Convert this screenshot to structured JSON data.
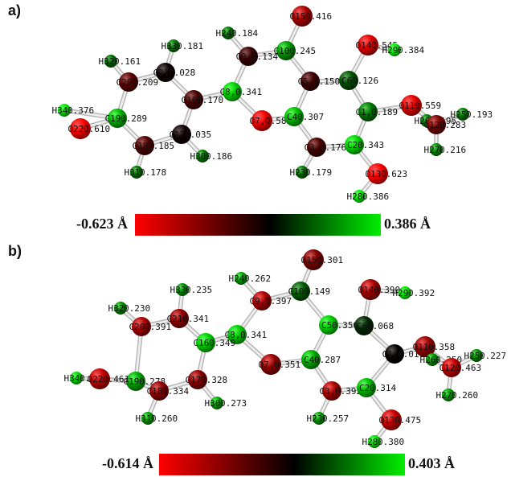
{
  "panels": [
    {
      "id": "a",
      "label": "a)",
      "scale": {
        "min_label": "-0.623 Å",
        "max_label": "0.386 Å",
        "min": -0.623,
        "max": 0.386
      },
      "atoms": [
        {
          "name": "O15",
          "label": "O15",
          "charge": "0.416",
          "value": -0.416,
          "r": 13
        },
        {
          "name": "H24",
          "label": "H24",
          "charge": "0.184",
          "value": 0.184,
          "r": 8
        },
        {
          "name": "C10",
          "label": "C10",
          "charge": "0.245",
          "value": 0.245,
          "r": 12
        },
        {
          "name": "C9",
          "label": "C9,",
          "charge": "0.134",
          "value": -0.134,
          "r": 12
        },
        {
          "name": "O14",
          "label": "O14",
          "charge": "0.545",
          "value": -0.545,
          "r": 13
        },
        {
          "name": "H29",
          "label": "H29",
          "charge": "0.384",
          "value": 0.384,
          "r": 8
        },
        {
          "name": "H33",
          "label": "H33",
          "charge": "0.181",
          "value": 0.181,
          "r": 8
        },
        {
          "name": "C21",
          "label": "C21",
          "charge": "0.028",
          "value": -0.028,
          "r": 12
        },
        {
          "name": "H32",
          "label": "H32",
          "charge": "0.161",
          "value": 0.161,
          "r": 8
        },
        {
          "name": "C20",
          "label": "C20",
          "charge": "0.209",
          "value": -0.209,
          "r": 12
        },
        {
          "name": "C8",
          "label": "C8,",
          "charge": "0.341",
          "value": 0.341,
          "r": 12
        },
        {
          "name": "C5",
          "label": "C5,",
          "charge": "0.150",
          "value": -0.15,
          "r": 12
        },
        {
          "name": "C6",
          "label": "C6",
          "charge": "0.126",
          "value": 0.126,
          "r": 12
        },
        {
          "name": "C16",
          "label": "C16",
          "charge": "0.170",
          "value": -0.17,
          "r": 12
        },
        {
          "name": "C1",
          "label": "C1,",
          "charge": "0.189",
          "value": 0.189,
          "r": 12
        },
        {
          "name": "O11",
          "label": "O11",
          "charge": "0.559",
          "value": -0.559,
          "r": 13
        },
        {
          "name": "H25",
          "label": "H25",
          "charge": "0.193",
          "value": 0.193,
          "r": 8
        },
        {
          "name": "H26",
          "label": "H26",
          "charge": "0.195",
          "value": 0.195,
          "r": 8
        },
        {
          "name": "C12",
          "label": "C12",
          "charge": "0.283",
          "value": -0.283,
          "r": 12
        },
        {
          "name": "H34",
          "label": "H34",
          "charge": "0.376",
          "value": 0.376,
          "r": 8
        },
        {
          "name": "C19",
          "label": "C19",
          "charge": "0.289",
          "value": 0.289,
          "r": 12
        },
        {
          "name": "O7",
          "label": "O7,",
          "charge": "0.585",
          "value": -0.585,
          "r": 13
        },
        {
          "name": "C4",
          "label": "C4",
          "charge": "0.307",
          "value": 0.307,
          "r": 12
        },
        {
          "name": "O22",
          "label": "O22",
          "charge": "0.610",
          "value": -0.61,
          "r": 13
        },
        {
          "name": "C17",
          "label": "C17",
          "charge": "0.035",
          "value": -0.035,
          "r": 12
        },
        {
          "name": "C18",
          "label": "C18",
          "charge": "0.185",
          "value": -0.185,
          "r": 12
        },
        {
          "name": "C3",
          "label": "C3,",
          "charge": "0.176",
          "value": -0.176,
          "r": 12
        },
        {
          "name": "C2",
          "label": "C2",
          "charge": "0.343",
          "value": 0.343,
          "r": 12
        },
        {
          "name": "H30",
          "label": "H30",
          "charge": "0.186",
          "value": 0.186,
          "r": 8
        },
        {
          "name": "H27",
          "label": "H27",
          "charge": "0.216",
          "value": 0.216,
          "r": 8
        },
        {
          "name": "H31",
          "label": "H31",
          "charge": "0.178",
          "value": 0.178,
          "r": 8
        },
        {
          "name": "H23",
          "label": "H23",
          "charge": "0.179",
          "value": 0.179,
          "r": 8
        },
        {
          "name": "O13",
          "label": "O13",
          "charge": "0.623",
          "value": -0.623,
          "r": 13
        },
        {
          "name": "H28",
          "label": "H28",
          "charge": "0.386",
          "value": 0.386,
          "r": 8
        }
      ]
    },
    {
      "id": "b",
      "label": "b)",
      "scale": {
        "min_label": "-0.614 Å",
        "max_label": "0.403 Å",
        "min": -0.614,
        "max": 0.403
      },
      "atoms": [
        {
          "name": "O15",
          "label": "O15",
          "charge": "0.301",
          "value": -0.301,
          "r": 13
        },
        {
          "name": "H24",
          "label": "H24",
          "charge": "0.262",
          "value": 0.262,
          "r": 8
        },
        {
          "name": "C10",
          "label": "C10",
          "charge": "0.149",
          "value": 0.149,
          "r": 12
        },
        {
          "name": "C9",
          "label": "C9,",
          "charge": "0.397",
          "value": -0.397,
          "r": 12
        },
        {
          "name": "O14",
          "label": "O14",
          "charge": "0.390",
          "value": -0.39,
          "r": 13
        },
        {
          "name": "H29",
          "label": "H29",
          "charge": "0.392",
          "value": 0.392,
          "r": 8
        },
        {
          "name": "H33",
          "label": "H33",
          "charge": "0.235",
          "value": 0.235,
          "r": 8
        },
        {
          "name": "C21",
          "label": "C21",
          "charge": "0.341",
          "value": -0.341,
          "r": 12
        },
        {
          "name": "H32",
          "label": "H32",
          "charge": "0.230",
          "value": 0.23,
          "r": 8
        },
        {
          "name": "C20",
          "label": "C20",
          "charge": "0.391",
          "value": -0.391,
          "r": 12
        },
        {
          "name": "C8",
          "label": "C8,",
          "charge": "0.341",
          "value": 0.341,
          "r": 12
        },
        {
          "name": "C5",
          "label": "C5",
          "charge": "0.350",
          "value": 0.35,
          "r": 12
        },
        {
          "name": "C6",
          "label": "C6",
          "charge": "0.068",
          "value": 0.068,
          "r": 12
        },
        {
          "name": "C16",
          "label": "C16",
          "charge": "0.349",
          "value": 0.349,
          "r": 12
        },
        {
          "name": "C1",
          "label": "C1,",
          "charge": "0.011",
          "value": -0.011,
          "r": 12
        },
        {
          "name": "O11",
          "label": "O11",
          "charge": "0.358",
          "value": -0.358,
          "r": 13
        },
        {
          "name": "H25",
          "label": "H25",
          "charge": "0.227",
          "value": 0.227,
          "r": 8
        },
        {
          "name": "H26",
          "label": "H26",
          "charge": "0.250",
          "value": 0.25,
          "r": 8
        },
        {
          "name": "C12",
          "label": "C12",
          "charge": "0.463",
          "value": -0.463,
          "r": 12
        },
        {
          "name": "H34",
          "label": "H34",
          "charge": "0.368",
          "value": 0.368,
          "r": 8
        },
        {
          "name": "C19",
          "label": "C19",
          "charge": "0.278",
          "value": 0.278,
          "r": 12
        },
        {
          "name": "O7",
          "label": "O7,",
          "charge": "0.351",
          "value": -0.351,
          "r": 13
        },
        {
          "name": "C4",
          "label": "C4",
          "charge": "0.287",
          "value": 0.287,
          "r": 12
        },
        {
          "name": "O22",
          "label": "O22",
          "charge": "0.461",
          "value": -0.461,
          "r": 13
        },
        {
          "name": "C17",
          "label": "C17",
          "charge": "0.328",
          "value": -0.328,
          "r": 12
        },
        {
          "name": "C18",
          "label": "C18",
          "charge": "0.334",
          "value": -0.334,
          "r": 12
        },
        {
          "name": "C3",
          "label": "C3,",
          "charge": "0.392",
          "value": -0.392,
          "r": 12
        },
        {
          "name": "C2",
          "label": "C2",
          "charge": "0.314",
          "value": 0.314,
          "r": 12
        },
        {
          "name": "H30",
          "label": "H30",
          "charge": "0.273",
          "value": 0.273,
          "r": 8
        },
        {
          "name": "H27",
          "label": "H27",
          "charge": "0.260",
          "value": 0.26,
          "r": 8
        },
        {
          "name": "H31",
          "label": "H31",
          "charge": "0.260",
          "value": 0.26,
          "r": 8
        },
        {
          "name": "H23",
          "label": "H23",
          "charge": "0.257",
          "value": 0.257,
          "r": 8
        },
        {
          "name": "O13",
          "label": "O13",
          "charge": "0.475",
          "value": -0.475,
          "r": 13
        },
        {
          "name": "H28",
          "label": "H28",
          "charge": "0.380",
          "value": 0.38,
          "r": 8
        }
      ]
    }
  ],
  "bonds": [
    [
      "O15",
      "C10"
    ],
    [
      "C10",
      "C9"
    ],
    [
      "C10",
      "C5"
    ],
    [
      "C9",
      "H24"
    ],
    [
      "C9",
      "C8"
    ],
    [
      "C8",
      "C16"
    ],
    [
      "C8",
      "O7"
    ],
    [
      "O7",
      "C4"
    ],
    [
      "C4",
      "C5"
    ],
    [
      "C4",
      "C3"
    ],
    [
      "C5",
      "C6"
    ],
    [
      "C6",
      "O14"
    ],
    [
      "O14",
      "H29"
    ],
    [
      "C6",
      "C1"
    ],
    [
      "C1",
      "C2"
    ],
    [
      "C1",
      "O11"
    ],
    [
      "O11",
      "C12"
    ],
    [
      "C12",
      "H25"
    ],
    [
      "C12",
      "H26"
    ],
    [
      "C12",
      "H27"
    ],
    [
      "C2",
      "C3"
    ],
    [
      "C3",
      "H23"
    ],
    [
      "C2",
      "O13"
    ],
    [
      "O13",
      "H28"
    ],
    [
      "C16",
      "C21"
    ],
    [
      "C21",
      "H33"
    ],
    [
      "C21",
      "C20"
    ],
    [
      "C20",
      "H32"
    ],
    [
      "C20",
      "C19"
    ],
    [
      "C19",
      "H34"
    ],
    [
      "C19",
      "O22"
    ],
    [
      "C19",
      "C18"
    ],
    [
      "C18",
      "H31"
    ],
    [
      "C18",
      "C17"
    ],
    [
      "C17",
      "H30"
    ],
    [
      "C17",
      "C16"
    ]
  ],
  "colors": {
    "negative": "#ff0000",
    "zero": "#000000",
    "positive": "#00ee00"
  }
}
